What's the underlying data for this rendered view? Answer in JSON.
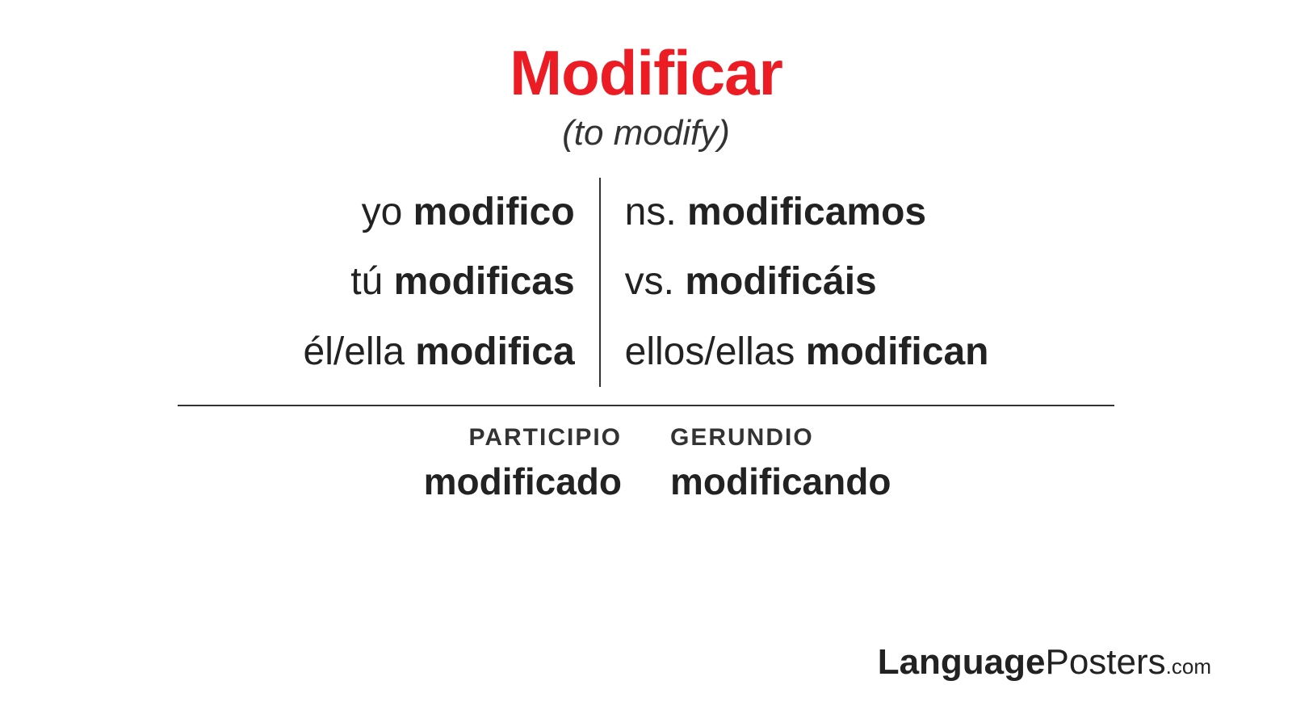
{
  "header": {
    "verb": "Modificar",
    "translation": "(to modify)",
    "title_color": "#ec1c24",
    "title_fontsize": 78,
    "subtitle_fontsize": 44
  },
  "conjugation": {
    "left": [
      {
        "pronoun": "yo ",
        "verb": "modifico"
      },
      {
        "pronoun": "tú ",
        "verb": "modificas"
      },
      {
        "pronoun": "él/ella ",
        "verb": "modifica"
      }
    ],
    "right": [
      {
        "pronoun": "ns. ",
        "verb": "modificamos"
      },
      {
        "pronoun": "vs. ",
        "verb": "modificáis"
      },
      {
        "pronoun": "ellos/ellas ",
        "verb": "modifican"
      }
    ],
    "row_fontsize": 48,
    "text_color": "#222222",
    "divider_color": "#333333"
  },
  "forms": {
    "participio": {
      "label": "PARTICIPIO",
      "value": "modificado"
    },
    "gerundio": {
      "label": "GERUNDIO",
      "value": "modificando"
    },
    "label_fontsize": 30,
    "value_fontsize": 46
  },
  "brand": {
    "bold": "Language",
    "light": "Posters",
    "domain": ".com",
    "fontsize": 44,
    "color": "#222222"
  },
  "layout": {
    "background_color": "#ffffff",
    "hr_width": 1160
  }
}
